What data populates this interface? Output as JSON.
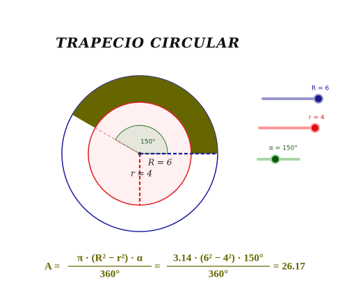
{
  "title": "TRAPECIO CIRCULAR",
  "sliders": [
    {
      "label": "R = 6"
    },
    {
      "label": "r = 4"
    },
    {
      "label": "α = 150°"
    }
  ],
  "figure": {
    "angle_label": "150°",
    "outer_radius_label": "R = 6",
    "inner_radius_label": "r = 4"
  },
  "formula": {
    "lhs": "A =",
    "fraction1": {
      "numerator": "π · (R² − r²) · α",
      "denominator": "360°"
    },
    "equals": "=",
    "fraction2": {
      "numerator": "3.14 · (6² − 4²) · 150°",
      "denominator": "360°"
    },
    "result": "= 26.17"
  }
}
